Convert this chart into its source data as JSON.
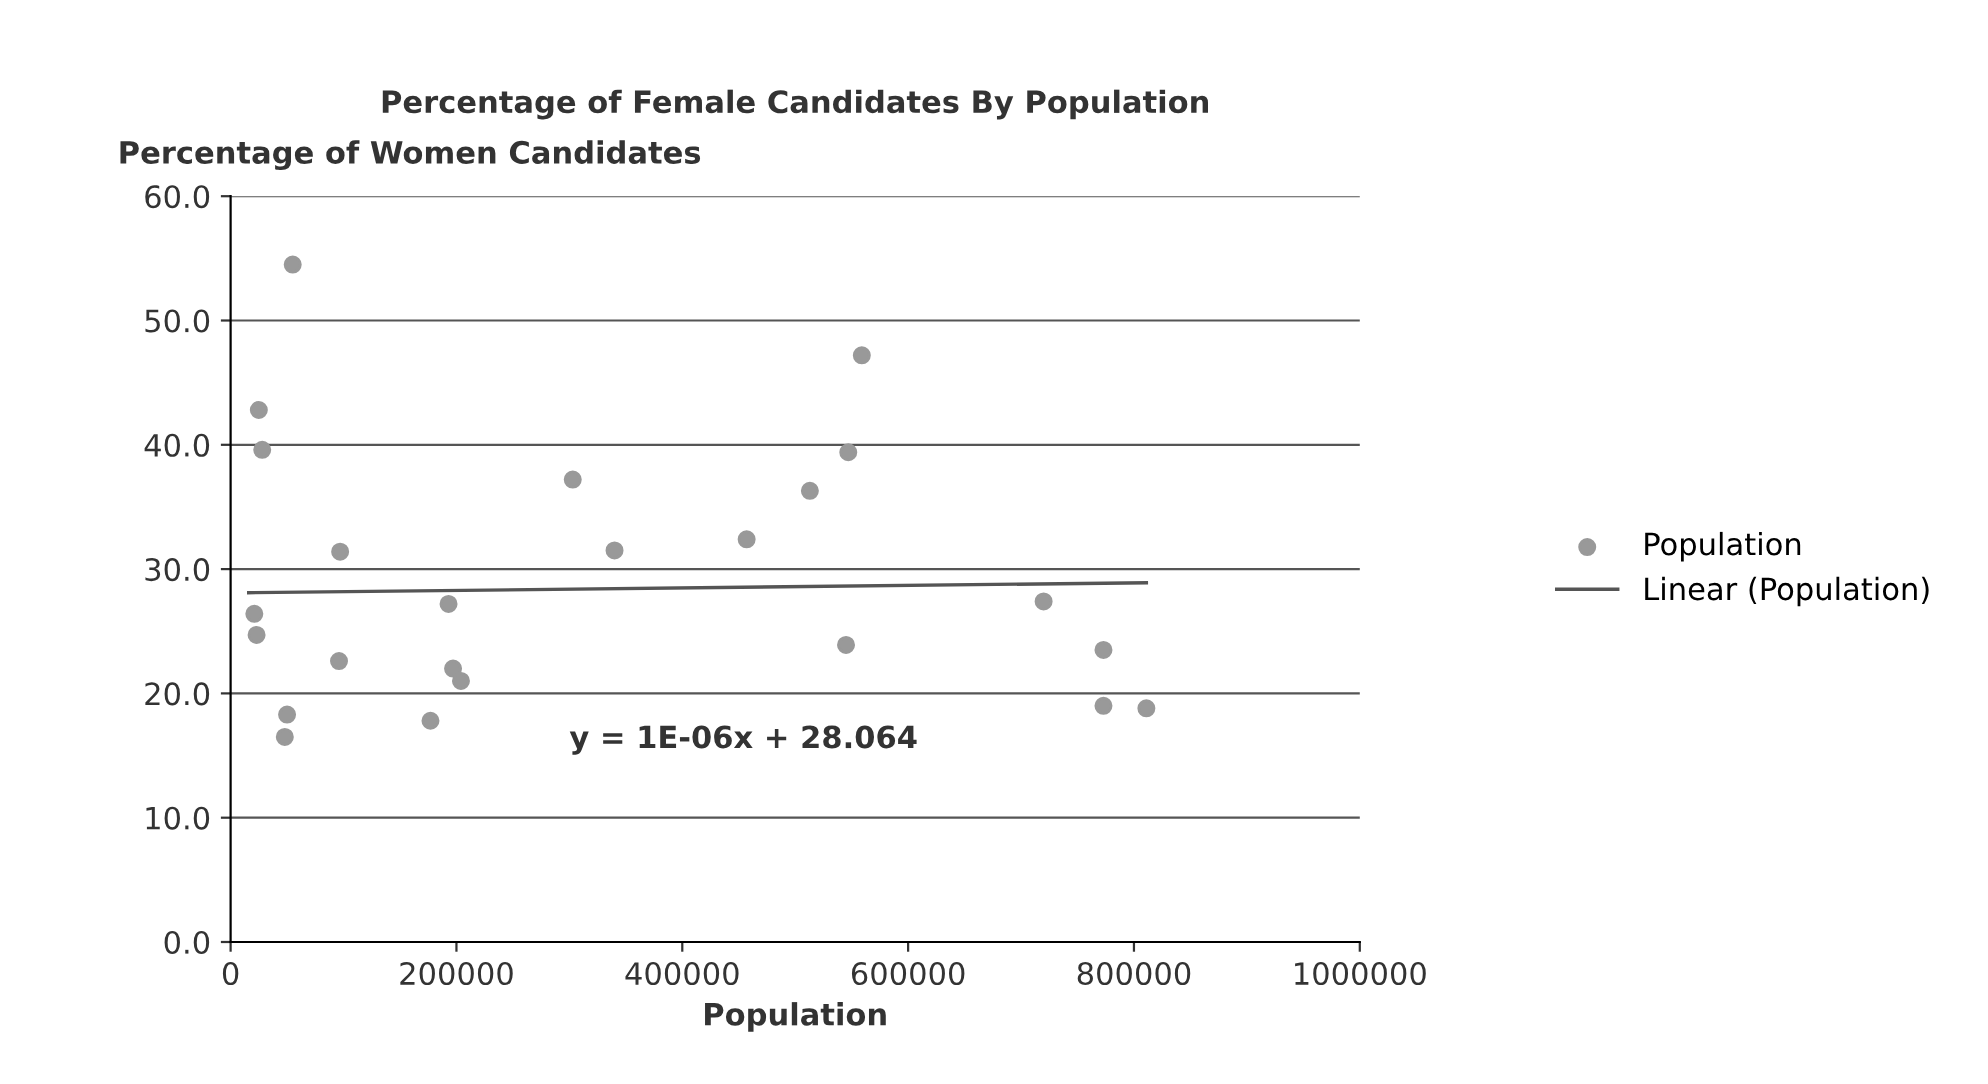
{
  "chart_data": {
    "type": "scatter",
    "title": "Percentage of Female Candidates By Population",
    "ylabel": "Percentage of Women Candidates",
    "xlabel": "Population",
    "annotations": [
      "y = 1E-06x + 28.064"
    ],
    "xlim": [
      0,
      1000000
    ],
    "xticks": [
      0,
      200000,
      400000,
      600000,
      800000,
      1000000
    ],
    "ylim": [
      0,
      60
    ],
    "yticks": [
      {
        "value": 0,
        "label": "0.0"
      },
      {
        "value": 10,
        "label": "10.0"
      },
      {
        "value": 20,
        "label": "20.0"
      },
      {
        "value": 30,
        "label": "30.0"
      },
      {
        "value": 40,
        "label": "40.0"
      },
      {
        "value": 50,
        "label": "50.0"
      },
      {
        "value": 60,
        "label": "60.0"
      }
    ],
    "grid": "y",
    "legend": "right",
    "marker": "circle",
    "series": [
      {
        "name": "Population",
        "color": "#999999",
        "x": [
          55000,
          25000,
          28000,
          97000,
          21000,
          23000,
          96000,
          50000,
          48000,
          193000,
          197000,
          204000,
          177000,
          303000,
          340000,
          457000,
          513000,
          547000,
          559000,
          545000,
          720000,
          773000,
          773000,
          811000
        ],
        "values": [
          54.5,
          42.8,
          39.6,
          31.4,
          26.4,
          24.7,
          22.6,
          18.3,
          16.5,
          27.2,
          22,
          21,
          17.8,
          37.2,
          31.5,
          32.4,
          36.3,
          39.4,
          47.2,
          23.9,
          27.4,
          23.5,
          19,
          18.8
        ]
      },
      {
        "name": "Linear (Population)",
        "color": "#555555",
        "type": "line",
        "marker": "none",
        "x": [
          16000,
          811000
        ],
        "values": [
          28.1,
          28.9
        ]
      }
    ]
  }
}
